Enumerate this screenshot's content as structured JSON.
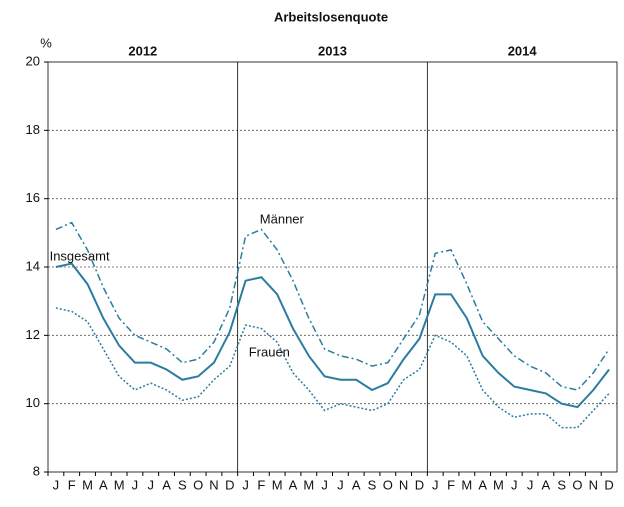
{
  "chart_data": {
    "type": "line",
    "title": "Arbeitslosenquote",
    "y_unit": "%",
    "years": [
      "2012",
      "2013",
      "2014"
    ],
    "categories": [
      "J",
      "F",
      "M",
      "A",
      "M",
      "J",
      "J",
      "A",
      "S",
      "O",
      "N",
      "D",
      "J",
      "F",
      "M",
      "A",
      "M",
      "J",
      "J",
      "A",
      "S",
      "O",
      "N",
      "D",
      "J",
      "F",
      "M",
      "A",
      "M",
      "J",
      "J",
      "A",
      "S",
      "O",
      "N",
      "D"
    ],
    "ylim": [
      8,
      20
    ],
    "yticks": [
      8,
      10,
      12,
      14,
      16,
      18,
      20
    ],
    "grid": true,
    "series": [
      {
        "name": "Männer",
        "color": "#2b7ca0",
        "dash": "dashdot",
        "values": [
          15.1,
          15.3,
          14.5,
          13.4,
          12.5,
          12.0,
          11.8,
          11.6,
          11.2,
          11.3,
          11.8,
          12.8,
          14.9,
          15.1,
          14.5,
          13.6,
          12.5,
          11.6,
          11.4,
          11.3,
          11.1,
          11.2,
          11.9,
          12.6,
          14.4,
          14.5,
          13.5,
          12.4,
          11.9,
          11.4,
          11.1,
          10.9,
          10.5,
          10.4,
          10.9,
          11.6
        ]
      },
      {
        "name": "Insgesamt",
        "color": "#2b7ca0",
        "dash": "solid",
        "values": [
          14.0,
          14.1,
          13.5,
          12.5,
          11.7,
          11.2,
          11.2,
          11.0,
          10.7,
          10.8,
          11.2,
          12.1,
          13.6,
          13.7,
          13.2,
          12.2,
          11.4,
          10.8,
          10.7,
          10.7,
          10.4,
          10.6,
          11.3,
          11.9,
          13.2,
          13.2,
          12.5,
          11.4,
          10.9,
          10.5,
          10.4,
          10.3,
          10.0,
          9.9,
          10.4,
          11.0
        ]
      },
      {
        "name": "Frauen",
        "color": "#2b7ca0",
        "dash": "dotted",
        "values": [
          12.8,
          12.7,
          12.4,
          11.6,
          10.8,
          10.4,
          10.6,
          10.4,
          10.1,
          10.2,
          10.7,
          11.1,
          12.3,
          12.2,
          11.8,
          10.9,
          10.4,
          9.8,
          10.0,
          9.9,
          9.8,
          10.0,
          10.7,
          11.0,
          12.0,
          11.8,
          11.4,
          10.4,
          9.9,
          9.6,
          9.7,
          9.7,
          9.3,
          9.3,
          9.8,
          10.3
        ]
      }
    ]
  }
}
